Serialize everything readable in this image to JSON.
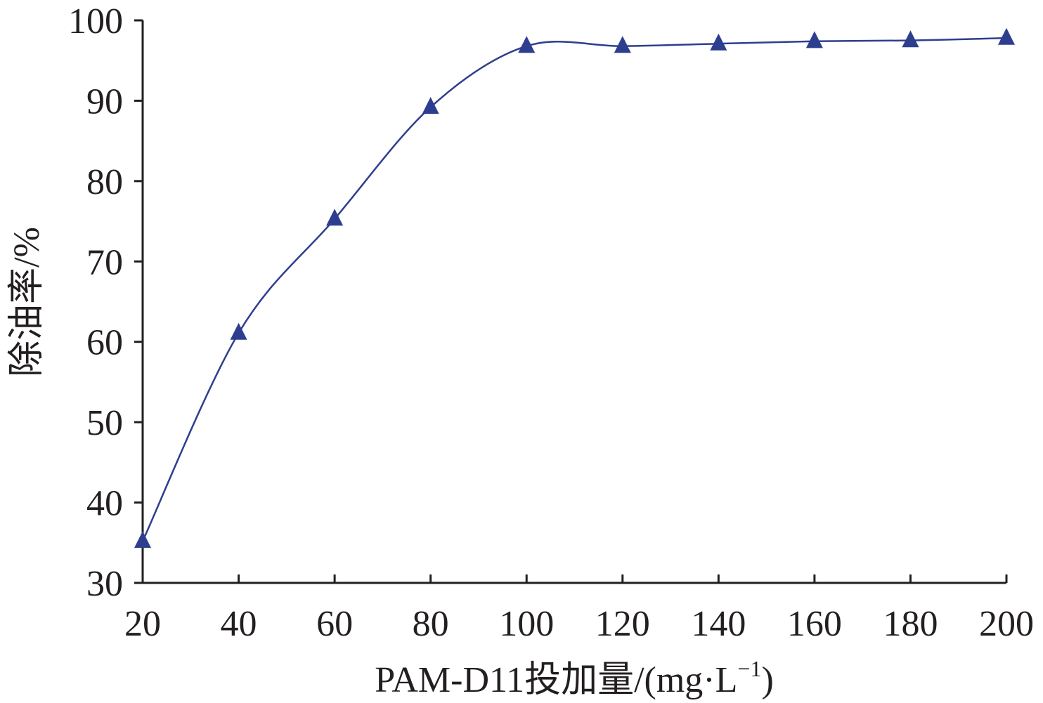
{
  "chart_data": {
    "type": "line",
    "title": "",
    "xlabel": "PAM-D11投加量/(mg·L",
    "xlabel_sup": "−1",
    "xlabel_suffix": ")",
    "ylabel": "除油率/%",
    "x": [
      20,
      40,
      60,
      80,
      100,
      120,
      140,
      160,
      180,
      200
    ],
    "xticks": [
      "20",
      "40",
      "60",
      "80",
      "100",
      "120",
      "140",
      "160",
      "180",
      "200"
    ],
    "yticks": [
      "30",
      "40",
      "50",
      "60",
      "70",
      "80",
      "90",
      "100"
    ],
    "xlim": [
      20,
      200
    ],
    "ylim": [
      30,
      100
    ],
    "grid": false,
    "series": [
      {
        "values": [
          35.2,
          61.1,
          75.3,
          89.2,
          96.8,
          96.8,
          97.1,
          97.4,
          97.5,
          97.8
        ],
        "color": "#2e3e8f",
        "marker": "triangle",
        "smooth": true
      }
    ]
  }
}
